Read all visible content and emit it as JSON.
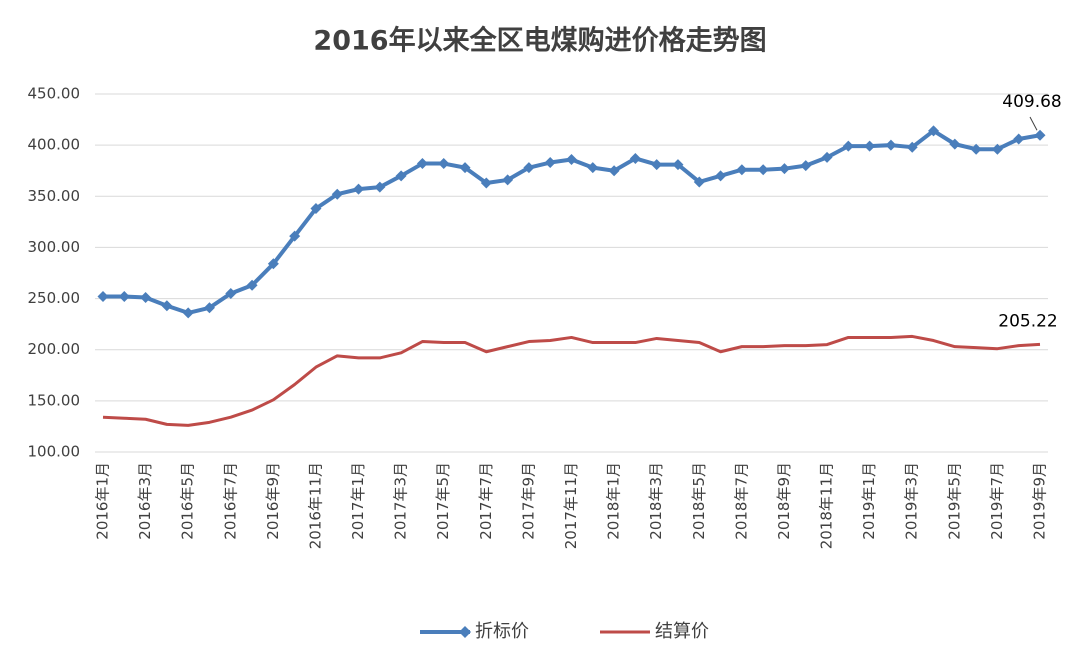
{
  "chart_data": {
    "type": "line",
    "title": "2016年以来全区电煤购进价格走势图",
    "categories": [
      "2016年1月",
      null,
      "2016年3月",
      null,
      "2016年5月",
      null,
      "2016年7月",
      null,
      "2016年9月",
      null,
      "2016年11月",
      null,
      "2017年1月",
      null,
      "2017年3月",
      null,
      "2017年5月",
      null,
      "2017年7月",
      null,
      "2017年9月",
      null,
      "2017年11月",
      null,
      "2018年1月",
      null,
      "2018年3月",
      null,
      "2018年5月",
      null,
      "2018年7月",
      null,
      "2018年9月",
      null,
      "2018年11月",
      null,
      "2019年1月",
      null,
      "2019年3月",
      null,
      "2019年5月",
      null,
      "2019年7月",
      null,
      "2019年9月"
    ],
    "series": [
      {
        "name": "折标价",
        "color": "#4a7ebb",
        "marker": "diamond",
        "values": [
          252,
          252,
          251,
          243,
          236,
          241,
          255,
          263,
          284,
          311,
          338,
          352,
          357,
          359,
          370,
          382,
          382,
          378,
          363,
          366,
          378,
          383,
          386,
          378,
          375,
          387,
          381,
          381,
          364,
          370,
          376,
          376,
          377,
          380,
          388,
          399,
          399,
          400,
          398,
          414,
          401,
          396,
          396,
          406,
          409.68
        ]
      },
      {
        "name": "结算价",
        "color": "#be4b48",
        "values": [
          134,
          133,
          132,
          127,
          126,
          129,
          134,
          141,
          151,
          166,
          183,
          194,
          192,
          192,
          197,
          208,
          207,
          207,
          198,
          203,
          208,
          209,
          212,
          207,
          207,
          207,
          211,
          209,
          207,
          198,
          203,
          203,
          204,
          204,
          205,
          212,
          212,
          212,
          213,
          209,
          203,
          202,
          201,
          204,
          205.22
        ]
      }
    ],
    "ylim": [
      100,
      450
    ],
    "yticks": [
      {
        "value": 100,
        "label": "100.00"
      },
      {
        "value": 150,
        "label": "150.00"
      },
      {
        "value": 200,
        "label": "200.00"
      },
      {
        "value": 250,
        "label": "250.00"
      },
      {
        "value": 300,
        "label": "300.00"
      },
      {
        "value": 350,
        "label": "350.00"
      },
      {
        "value": 400,
        "label": "400.00"
      },
      {
        "value": 450,
        "label": "450.00"
      }
    ],
    "grid": true,
    "legend": "bottom"
  }
}
